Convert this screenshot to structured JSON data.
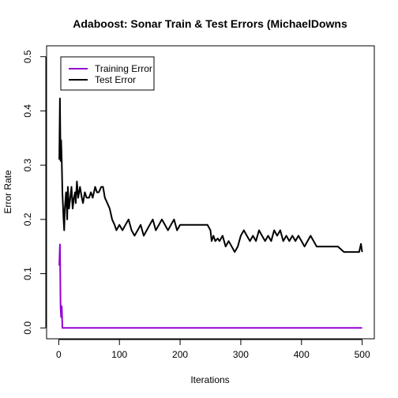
{
  "chart_data": {
    "type": "line",
    "title": "Adaboost: Sonar Train & Test Errors (MichaelDowns",
    "xlabel": "Iterations",
    "ylabel": "Error Rate",
    "xlim": [
      0,
      500
    ],
    "ylim": [
      0,
      0.5
    ],
    "x_ticks": [
      0,
      100,
      200,
      300,
      400,
      500
    ],
    "y_ticks": [
      0.0,
      0.1,
      0.2,
      0.3,
      0.4,
      0.5
    ],
    "x_tick_labels": [
      "0",
      "100",
      "200",
      "300",
      "400",
      "500"
    ],
    "y_tick_labels": [
      "0.0",
      "0.1",
      "0.2",
      "0.3",
      "0.4",
      "0.5"
    ],
    "grid": false,
    "legend_position": "top-left",
    "series": [
      {
        "name": "Training Error",
        "color": "#9400D3",
        "x": [
          1,
          2,
          3,
          4,
          5,
          6,
          500
        ],
        "y": [
          0.115,
          0.154,
          0.038,
          0.02,
          0.04,
          0.0,
          0.0
        ]
      },
      {
        "name": "Test Error",
        "color": "#000000",
        "x": [
          1,
          2,
          3,
          4,
          5,
          6,
          8,
          9,
          10,
          12,
          14,
          15,
          17,
          19,
          21,
          23,
          25,
          27,
          28,
          30,
          32,
          35,
          38,
          40,
          43,
          46,
          50,
          53,
          56,
          60,
          63,
          66,
          70,
          73,
          76,
          80,
          84,
          88,
          92,
          95,
          100,
          105,
          110,
          115,
          120,
          125,
          130,
          135,
          140,
          145,
          150,
          155,
          160,
          165,
          170,
          175,
          180,
          185,
          190,
          195,
          200,
          210,
          220,
          230,
          240,
          245,
          250,
          252,
          255,
          258,
          262,
          265,
          270,
          275,
          280,
          285,
          290,
          295,
          300,
          305,
          310,
          315,
          320,
          325,
          330,
          335,
          340,
          345,
          350,
          355,
          360,
          365,
          370,
          375,
          380,
          385,
          390,
          395,
          400,
          405,
          410,
          415,
          420,
          425,
          430,
          440,
          450,
          460,
          470,
          475,
          480,
          490,
          495,
          498,
          500
        ],
        "y": [
          0.31,
          0.423,
          0.308,
          0.346,
          0.308,
          0.25,
          0.2,
          0.18,
          0.22,
          0.25,
          0.2,
          0.26,
          0.22,
          0.24,
          0.26,
          0.22,
          0.24,
          0.25,
          0.23,
          0.27,
          0.24,
          0.26,
          0.24,
          0.23,
          0.25,
          0.24,
          0.24,
          0.25,
          0.24,
          0.26,
          0.25,
          0.25,
          0.26,
          0.26,
          0.24,
          0.23,
          0.22,
          0.2,
          0.19,
          0.18,
          0.19,
          0.18,
          0.19,
          0.2,
          0.18,
          0.17,
          0.18,
          0.19,
          0.17,
          0.18,
          0.19,
          0.2,
          0.18,
          0.19,
          0.2,
          0.19,
          0.18,
          0.19,
          0.2,
          0.18,
          0.19,
          0.19,
          0.19,
          0.19,
          0.19,
          0.19,
          0.18,
          0.16,
          0.17,
          0.16,
          0.165,
          0.16,
          0.17,
          0.15,
          0.16,
          0.15,
          0.14,
          0.15,
          0.17,
          0.18,
          0.17,
          0.16,
          0.17,
          0.16,
          0.18,
          0.17,
          0.16,
          0.17,
          0.16,
          0.18,
          0.17,
          0.18,
          0.16,
          0.17,
          0.16,
          0.17,
          0.16,
          0.17,
          0.16,
          0.15,
          0.16,
          0.17,
          0.16,
          0.15,
          0.15,
          0.15,
          0.15,
          0.15,
          0.14,
          0.14,
          0.14,
          0.14,
          0.14,
          0.155,
          0.14
        ]
      }
    ]
  }
}
